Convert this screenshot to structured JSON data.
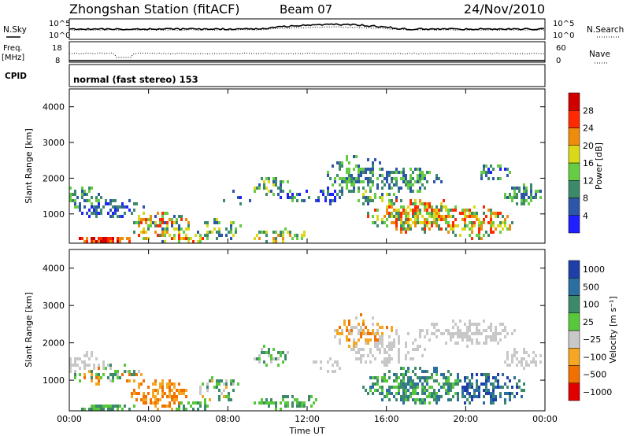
{
  "header": {
    "station": "Zhongshan Station (fitACF)",
    "beam": "Beam 07",
    "date": "24/Nov/2010"
  },
  "strip_nsky": {
    "left_label": "N.Sky",
    "right_label": "N.Search",
    "left_ticks": [
      "10^5",
      "10^0"
    ],
    "right_ticks": [
      "10^5",
      "10^0"
    ]
  },
  "strip_freq": {
    "left_label_1": "Freq.",
    "left_label_2": "[MHz]",
    "right_label": "Nave",
    "left_ticks": [
      "18",
      "8"
    ],
    "right_ticks": [
      "60",
      "0"
    ]
  },
  "strip_cpid": {
    "label": "CPID",
    "text": "normal (fast stereo) 153"
  },
  "chart_data": [
    {
      "type": "heatmap",
      "name": "power",
      "ylabel": "Slant Range [km]",
      "ylim": [
        180,
        4500
      ],
      "yticks": [
        "1000",
        "2000",
        "3000",
        "4000"
      ],
      "xlim": [
        0,
        24
      ],
      "colorbar_label": "Power [dB]",
      "colorbar_ticks": [
        "4",
        "8",
        "12",
        "16",
        "20",
        "24",
        "28"
      ],
      "colors": [
        "#1f1fff",
        "#2e56a8",
        "#3d8a6b",
        "#66cc44",
        "#d9d91a",
        "#f08c0c",
        "#ff2a00",
        "#d00000"
      ]
    },
    {
      "type": "heatmap",
      "name": "velocity",
      "ylabel": "Slant Range [km]",
      "ylim": [
        180,
        4500
      ],
      "yticks": [
        "1000",
        "2000",
        "3000",
        "4000"
      ],
      "xlim": [
        0,
        24
      ],
      "colorbar_label": "Velocity  [m s⁻¹]",
      "colorbar_ticks": [
        "1000",
        "500",
        "100",
        "25",
        "−25",
        "−100",
        "−500",
        "−1000"
      ],
      "colors": [
        "#1f3fa8",
        "#2b6fa0",
        "#3d8a6b",
        "#57c83a",
        "#c8c8c8",
        "#f5a623",
        "#f07000",
        "#e00000"
      ]
    }
  ],
  "x_axis": {
    "ticks": [
      "00:00",
      "04:00",
      "08:00",
      "12:00",
      "16:00",
      "20:00",
      "00:00"
    ],
    "label": "Time UT"
  }
}
